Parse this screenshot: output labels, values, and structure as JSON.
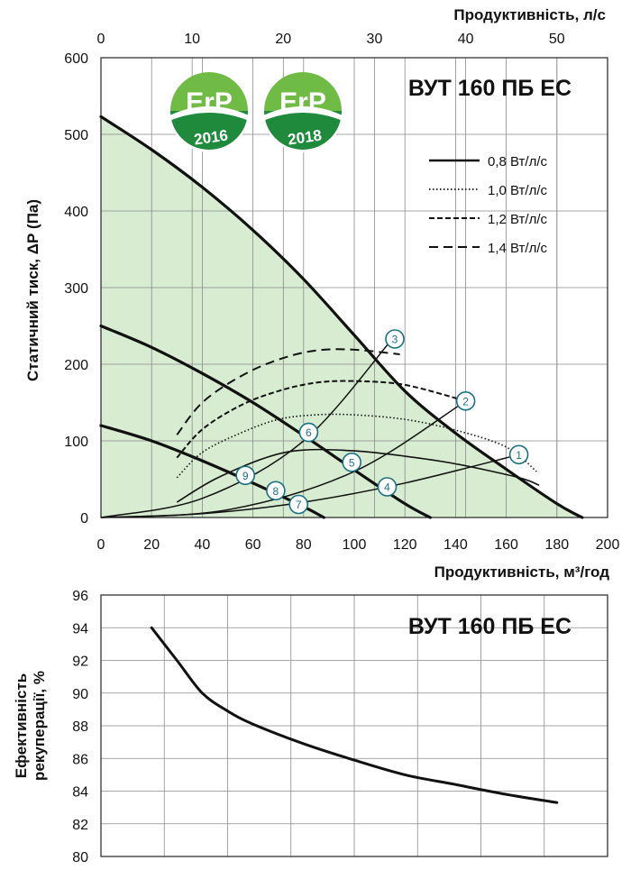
{
  "chart_data": [
    {
      "type": "line",
      "title": "ВУТ 160 ПБ ЕС",
      "xlabel": "Продуктивність, м³/год",
      "x2label": "Продуктивність, л/с",
      "ylabel": "Статичний тиск, ΔР (Па)",
      "xlim": [
        0,
        200
      ],
      "x2lim": [
        0,
        55.56
      ],
      "ylim": [
        0,
        600
      ],
      "x_ticks": [
        "0",
        "20",
        "40",
        "60",
        "80",
        "100",
        "120",
        "140",
        "160",
        "180",
        "200"
      ],
      "x2_ticks": [
        "0",
        "10",
        "20",
        "30",
        "40",
        "50"
      ],
      "y_ticks": [
        "0",
        "100",
        "200",
        "300",
        "400",
        "500",
        "600"
      ],
      "grid": true,
      "legend_position": "top-right",
      "fill_color": "#d7ecd0",
      "logos": [
        {
          "name": "erp-2016-logo",
          "text": "ErP",
          "year": "2016"
        },
        {
          "name": "erp-2018-logo",
          "text": "ErP",
          "year": "2018"
        }
      ],
      "fan_curves": [
        {
          "x": [
            0,
            20,
            40,
            60,
            80,
            100,
            120,
            140,
            160,
            180,
            190
          ],
          "y": [
            523,
            480,
            431,
            375,
            311,
            238,
            165,
            110,
            63,
            18,
            0
          ]
        },
        {
          "x": [
            0,
            20,
            40,
            60,
            80,
            100,
            120,
            130
          ],
          "y": [
            250,
            222,
            188,
            150,
            107,
            62,
            18,
            0
          ]
        },
        {
          "x": [
            0,
            20,
            40,
            60,
            80,
            88
          ],
          "y": [
            120,
            100,
            74,
            45,
            14,
            0
          ]
        }
      ],
      "system_curves": [
        {
          "x": [
            0,
            40,
            80,
            120,
            165
          ],
          "y": [
            0,
            5,
            20,
            45,
            82
          ]
        },
        {
          "x": [
            0,
            50,
            100,
            144
          ],
          "y": [
            0,
            10,
            60,
            152
          ]
        },
        {
          "x": [
            0,
            40,
            80,
            115
          ],
          "y": [
            0,
            25,
            100,
            233
          ]
        }
      ],
      "series": [
        {
          "name": "0,8 Вт/л/с",
          "style": "solid",
          "x": [
            30,
            45,
            65,
            80,
            100,
            120,
            140,
            165,
            173
          ],
          "y": [
            20,
            50,
            78,
            88,
            87,
            80,
            70,
            52,
            42
          ]
        },
        {
          "name": "1,0 Вт/л/с",
          "style": "dotted",
          "x": [
            30,
            40,
            55,
            70,
            85,
            100,
            120,
            140,
            160,
            172
          ],
          "y": [
            52,
            85,
            110,
            128,
            134,
            134,
            128,
            114,
            92,
            60
          ]
        },
        {
          "name": "1,2 Вт/л/с",
          "style": "dense-dashed",
          "x": [
            30,
            40,
            55,
            70,
            85,
            100,
            120,
            144
          ],
          "y": [
            78,
            115,
            146,
            165,
            176,
            178,
            173,
            152
          ]
        },
        {
          "name": "1,4 Вт/л/с",
          "style": "dashed",
          "x": [
            30,
            40,
            55,
            70,
            85,
            100,
            118
          ],
          "y": [
            108,
            150,
            184,
            206,
            218,
            219,
            213
          ]
        }
      ],
      "points": [
        {
          "label": "1",
          "x": 165,
          "y": 82
        },
        {
          "label": "2",
          "x": 144,
          "y": 152
        },
        {
          "label": "3",
          "x": 116,
          "y": 233
        },
        {
          "label": "4",
          "x": 113,
          "y": 40
        },
        {
          "label": "5",
          "x": 99,
          "y": 72
        },
        {
          "label": "6",
          "x": 82,
          "y": 111
        },
        {
          "label": "7",
          "x": 78,
          "y": 17
        },
        {
          "label": "8",
          "x": 69,
          "y": 35
        },
        {
          "label": "9",
          "x": 57,
          "y": 55
        }
      ]
    },
    {
      "type": "line",
      "title": "ВУТ 160 ПБ ЕС",
      "ylabel": "Ефективність рекуперації, %",
      "xlim": [
        0,
        200
      ],
      "ylim": [
        80,
        96
      ],
      "y_ticks": [
        "80",
        "82",
        "84",
        "86",
        "88",
        "90",
        "92",
        "94",
        "96"
      ],
      "grid": true,
      "series": [
        {
          "x": [
            20,
            30,
            40,
            50,
            60,
            80,
            100,
            120,
            140,
            160,
            180
          ],
          "y": [
            94,
            92,
            90,
            88.9,
            88.1,
            86.9,
            85.9,
            85,
            84.4,
            83.8,
            83.3
          ]
        }
      ]
    }
  ],
  "mark_labels": {
    "p1": "1",
    "p2": "2",
    "p3": "3",
    "p4": "4",
    "p5": "5",
    "p6": "6",
    "p7": "7",
    "p8": "8",
    "p9": "9"
  }
}
